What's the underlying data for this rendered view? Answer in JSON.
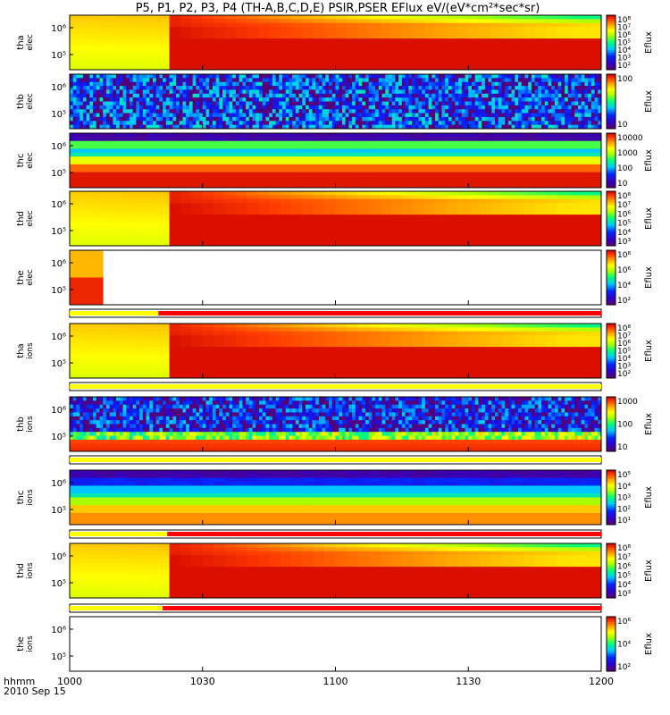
{
  "chart_data": {
    "type": "heatmap",
    "title": "P5, P1, P2, P3, P4 (TH-A,B,C,D,E) PSIR,PSER EFlux eV/(eV*cm²*sec*sr)",
    "x_ticks": [
      "1000",
      "1030",
      "1100",
      "1130",
      "1200"
    ],
    "x_tick_label_units": "hhmm",
    "date_label": "2010 Sep 15",
    "colorbar_label": "Eflux",
    "panels": [
      {
        "probe": "tha",
        "species": "elec",
        "y_ticks": [
          "10⁶",
          "10⁵"
        ],
        "cbar_ticks": [
          "10⁸",
          "10⁷",
          "10⁶",
          "10⁵",
          "10⁴",
          "10³",
          "10²"
        ],
        "pattern": "smooth_transition",
        "transition_time": "1022"
      },
      {
        "probe": "thb",
        "species": "elec",
        "y_ticks": [
          "10⁶",
          "10⁵"
        ],
        "cbar_ticks": [
          "100",
          "10"
        ],
        "pattern": "noise"
      },
      {
        "probe": "thc",
        "species": "elec",
        "y_ticks": [
          "10⁶",
          "10⁵"
        ],
        "cbar_ticks": [
          "10000",
          "1000",
          "100",
          "10"
        ],
        "pattern": "bands"
      },
      {
        "probe": "thd",
        "species": "elec",
        "y_ticks": [
          "10⁶",
          "10⁵"
        ],
        "cbar_ticks": [
          "10⁸",
          "10⁷",
          "10⁶",
          "10⁵",
          "10⁴",
          "10³"
        ],
        "pattern": "smooth_transition",
        "transition_time": "1023"
      },
      {
        "probe": "the",
        "species": "elec",
        "y_ticks": [
          "10⁶",
          "10⁵"
        ],
        "cbar_ticks": [
          "10⁸",
          "10⁶",
          "10⁴",
          "10²"
        ],
        "pattern": "short",
        "data_end_time": "1007"
      },
      {
        "probe": "tha",
        "species": "ions",
        "y_ticks": [
          "10⁶",
          "10⁵"
        ],
        "cbar_ticks": [
          "10⁸",
          "10⁷",
          "10⁶",
          "10⁵",
          "10⁴",
          "10³",
          "10²"
        ],
        "pattern": "smooth_transition",
        "transition_time": "1022"
      },
      {
        "probe": "thb",
        "species": "ions",
        "y_ticks": [
          "10⁶",
          "10⁵"
        ],
        "cbar_ticks": [
          "1000",
          "100",
          "10"
        ],
        "pattern": "noise_ions"
      },
      {
        "probe": "thc",
        "species": "ions",
        "y_ticks": [
          "10⁶",
          "10⁵"
        ],
        "cbar_ticks": [
          "10⁵",
          "10⁴",
          "10³",
          "10²",
          "10¹"
        ],
        "pattern": "bands_ions"
      },
      {
        "probe": "thd",
        "species": "ions",
        "y_ticks": [
          "10⁶",
          "10⁵"
        ],
        "cbar_ticks": [
          "10⁸",
          "10⁷",
          "10⁶",
          "10⁵",
          "10⁴",
          "10³"
        ],
        "pattern": "smooth_transition",
        "transition_time": "1023"
      },
      {
        "probe": "the",
        "species": "ions",
        "y_ticks": [
          "10⁶",
          "10⁵"
        ],
        "cbar_ticks": [
          "10⁶",
          "10⁴",
          "10²"
        ],
        "pattern": "empty"
      }
    ],
    "mode_bars": [
      {
        "after_panel": "the elec",
        "segments": [
          {
            "color": "#ffff00",
            "from": "1000",
            "to": "1020"
          },
          {
            "color": "#ff0000",
            "from": "1020",
            "to": "1200"
          }
        ]
      },
      {
        "after_panel": "tha ions",
        "segments": [
          {
            "color": "#ffff00",
            "from": "1000",
            "to": "1200"
          }
        ]
      },
      {
        "after_panel": "thb ions",
        "segments": [
          {
            "color": "#ffff00",
            "from": "1000",
            "to": "1200"
          }
        ]
      },
      {
        "after_panel": "thc ions",
        "segments": [
          {
            "color": "#ffff00",
            "from": "1000",
            "to": "1022"
          },
          {
            "color": "#ff0000",
            "from": "1022",
            "to": "1200"
          }
        ]
      },
      {
        "after_panel": "thd ions",
        "segments": [
          {
            "color": "#ffff00",
            "from": "1000",
            "to": "1021"
          },
          {
            "color": "#ff0000",
            "from": "1021",
            "to": "1200"
          }
        ]
      }
    ]
  }
}
